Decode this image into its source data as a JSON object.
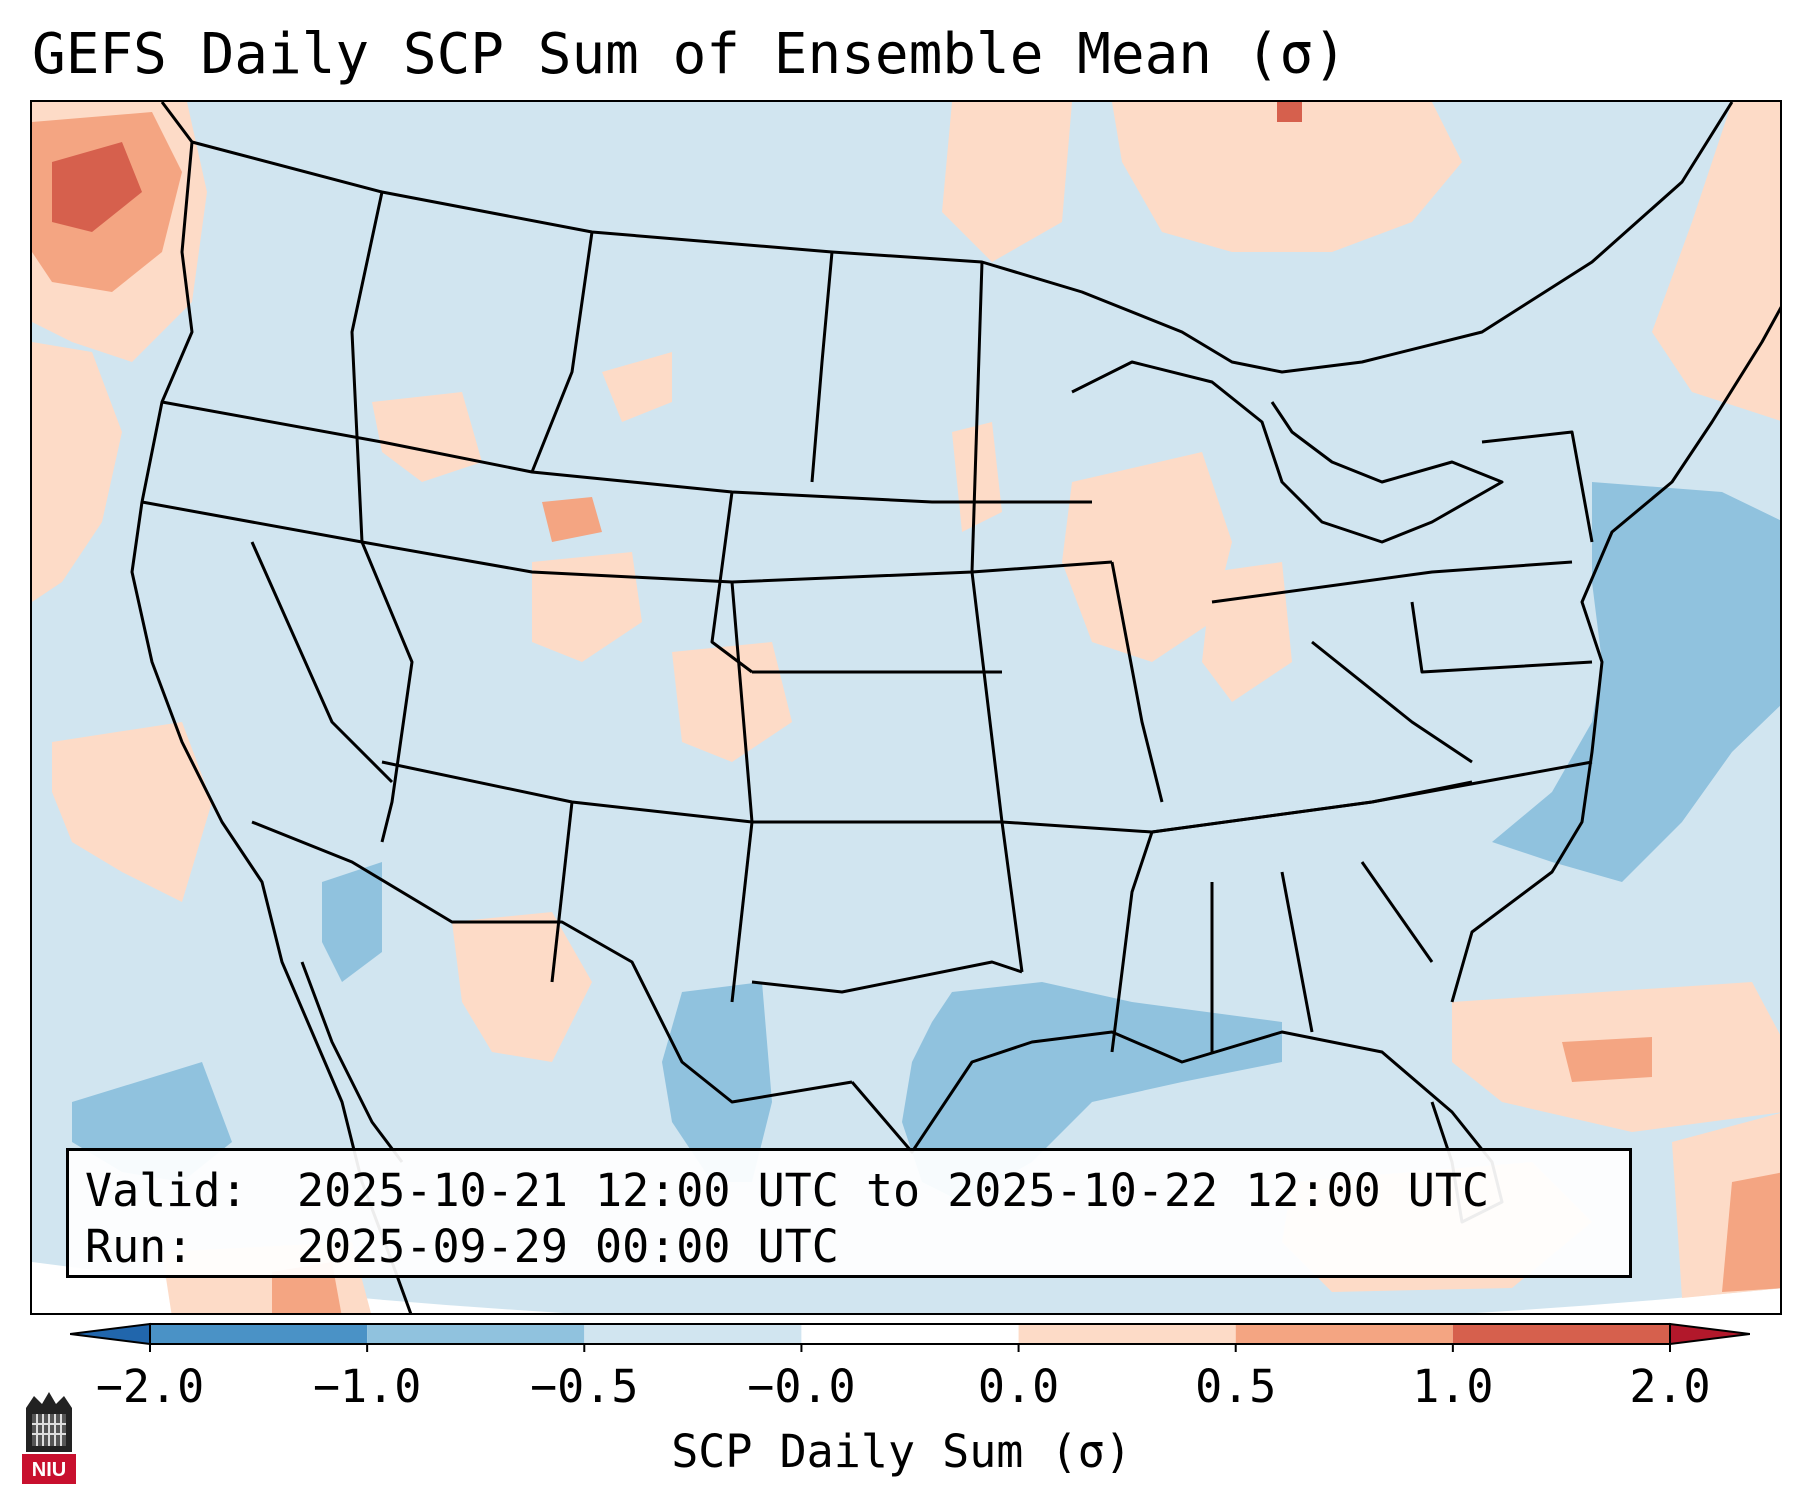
{
  "title": "GEFS Daily SCP Sum of Ensemble Mean (σ)",
  "info": {
    "valid_label": "Valid:",
    "valid_value": "2025-10-21 12:00 UTC to 2025-10-22 12:00 UTC",
    "run_label": "Run:",
    "run_value": "2025-09-29 00:00 UTC"
  },
  "colorbar": {
    "label": "SCP Daily Sum (σ)",
    "ticks": [
      "−2.0",
      "−1.0",
      "−0.5",
      "−0.0",
      "0.0",
      "0.5",
      "1.0",
      "2.0"
    ],
    "bins": [
      {
        "from": -2.0,
        "to": -1.0,
        "color": "#4a92c6"
      },
      {
        "from": -1.0,
        "to": -0.5,
        "color": "#90c2de"
      },
      {
        "from": -0.5,
        "to": -0.0,
        "color": "#d1e5f0"
      },
      {
        "from": 0.0,
        "to": 0.0,
        "color": "#ffffff"
      },
      {
        "from": 0.0,
        "to": 0.5,
        "color": "#fddbc7"
      },
      {
        "from": 0.5,
        "to": 1.0,
        "color": "#f4a582"
      },
      {
        "from": 1.0,
        "to": 2.0,
        "color": "#d6604d"
      }
    ],
    "under_color": "#2166ac",
    "over_color": "#b2182b"
  },
  "logo": {
    "text": "NIU",
    "color": "#c8102e"
  },
  "map": {
    "projection": "lambert-conformal",
    "region": "CONUS"
  }
}
